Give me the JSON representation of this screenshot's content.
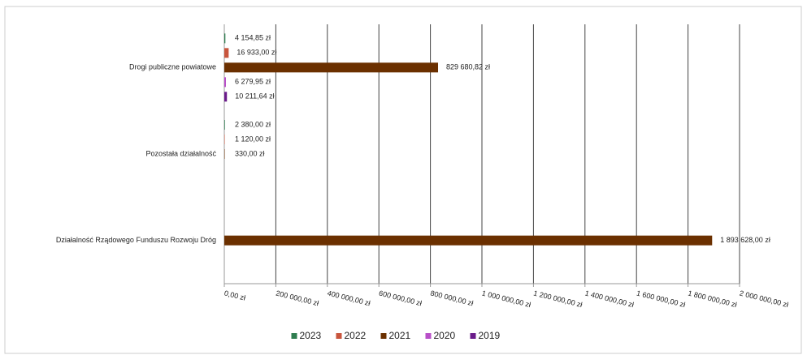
{
  "chart_data": {
    "type": "hbar",
    "categories": [
      "Drogi publiczne powiatowe",
      "Pozostała działalność",
      "Działalność Rządowego Funduszu Rozwoju Dróg"
    ],
    "series": [
      {
        "name": "2023",
        "color": "#2e7d4f",
        "values": [
          4154.85,
          2380.0,
          null
        ],
        "value_labels": [
          "4 154,85 zł",
          "2 380,00 zł",
          null
        ]
      },
      {
        "name": "2022",
        "color": "#c8553d",
        "values": [
          16933.0,
          1120.0,
          null
        ],
        "value_labels": [
          "16 933,00 zł",
          "1 120,00 zł",
          null
        ]
      },
      {
        "name": "2021",
        "color": "#6b3000",
        "values": [
          829680.82,
          330.0,
          1893628.0
        ],
        "value_labels": [
          "829 680,82 zł",
          "330,00 zł",
          "1 893 628,00 zł"
        ]
      },
      {
        "name": "2020",
        "color": "#b84fc8",
        "values": [
          6279.95,
          null,
          null
        ],
        "value_labels": [
          "6 279,95 zł",
          null,
          null
        ]
      },
      {
        "name": "2019",
        "color": "#6a1b8a",
        "values": [
          10211.64,
          null,
          null
        ],
        "value_labels": [
          "10 211,64 zł",
          null,
          null
        ]
      }
    ],
    "xlim": [
      0,
      2000000
    ],
    "xticks": [
      {
        "value": 0,
        "label": "0,00 zł"
      },
      {
        "value": 200000,
        "label": "200 000,00 zł"
      },
      {
        "value": 400000,
        "label": "400 000,00 zł"
      },
      {
        "value": 600000,
        "label": "600 000,00 zł"
      },
      {
        "value": 800000,
        "label": "800 000,00 zł"
      },
      {
        "value": 1000000,
        "label": "1 000 000,00 zł"
      },
      {
        "value": 1200000,
        "label": "1 200 000,00 zł"
      },
      {
        "value": 1400000,
        "label": "1 400 000,00 zł"
      },
      {
        "value": 1600000,
        "label": "1 600 000,00 zł"
      },
      {
        "value": 1800000,
        "label": "1 800 000,00 zł"
      },
      {
        "value": 2000000,
        "label": "2 000 000,00 zł"
      }
    ],
    "grid": true,
    "legend": "bottom"
  }
}
